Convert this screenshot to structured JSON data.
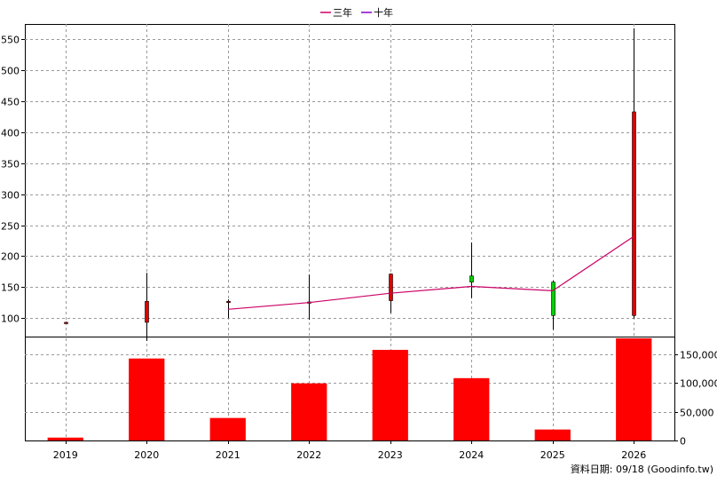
{
  "legend": {
    "three_year": "三年",
    "ten_year": "十年"
  },
  "footer": "資料日期: 09/18 (Goodinfo.tw)",
  "colors": {
    "up_candle": "#e00000",
    "down_candle": "#00d000",
    "volume_bar": "#ff0000",
    "three_year_line": "#cc0066",
    "ten_year_line": "#8800cc",
    "grid": "#999999"
  },
  "chart_data": [
    {
      "type": "candlestick",
      "title": "",
      "categories": [
        "2019",
        "2020",
        "2021",
        "2022",
        "2023",
        "2024",
        "2025",
        "2026"
      ],
      "candles": [
        {
          "year": "2019",
          "open": 92,
          "close": 93,
          "high": 94,
          "low": 91
        },
        {
          "year": "2020",
          "open": 93,
          "close": 127,
          "high": 173,
          "low": 63
        },
        {
          "year": "2021",
          "open": 125,
          "close": 127,
          "high": 130,
          "low": 100
        },
        {
          "year": "2022",
          "open": 126,
          "close": 126,
          "high": 170,
          "low": 97
        },
        {
          "year": "2023",
          "open": 128,
          "close": 171,
          "high": 172,
          "low": 108
        },
        {
          "year": "2024",
          "open": 168,
          "close": 158,
          "high": 222,
          "low": 132
        },
        {
          "year": "2025",
          "open": 158,
          "close": 104,
          "high": 160,
          "low": 81
        },
        {
          "year": "2026",
          "open": 104,
          "close": 433,
          "high": 568,
          "low": 99
        }
      ],
      "series": [
        {
          "name": "三年",
          "x": [
            "2021",
            "2022",
            "2023",
            "2024",
            "2025",
            "2026"
          ],
          "values": [
            114,
            125,
            140,
            151,
            144,
            232
          ]
        }
      ],
      "ylim": [
        70,
        575
      ],
      "yticks": [
        100,
        150,
        200,
        250,
        300,
        350,
        400,
        450,
        500,
        550
      ],
      "grid": true,
      "legend_position": "top"
    },
    {
      "type": "bar",
      "title": "",
      "categories": [
        "2019",
        "2020",
        "2021",
        "2022",
        "2023",
        "2024",
        "2025",
        "2026"
      ],
      "values": [
        5000,
        142000,
        39000,
        99000,
        157000,
        108000,
        19000,
        177000
      ],
      "ylim": [
        0,
        180000
      ],
      "yticks": [
        "0",
        "50,000",
        "100,000",
        "150,000"
      ],
      "ytick_values": [
        0,
        50000,
        100000,
        150000
      ],
      "grid": true
    }
  ]
}
